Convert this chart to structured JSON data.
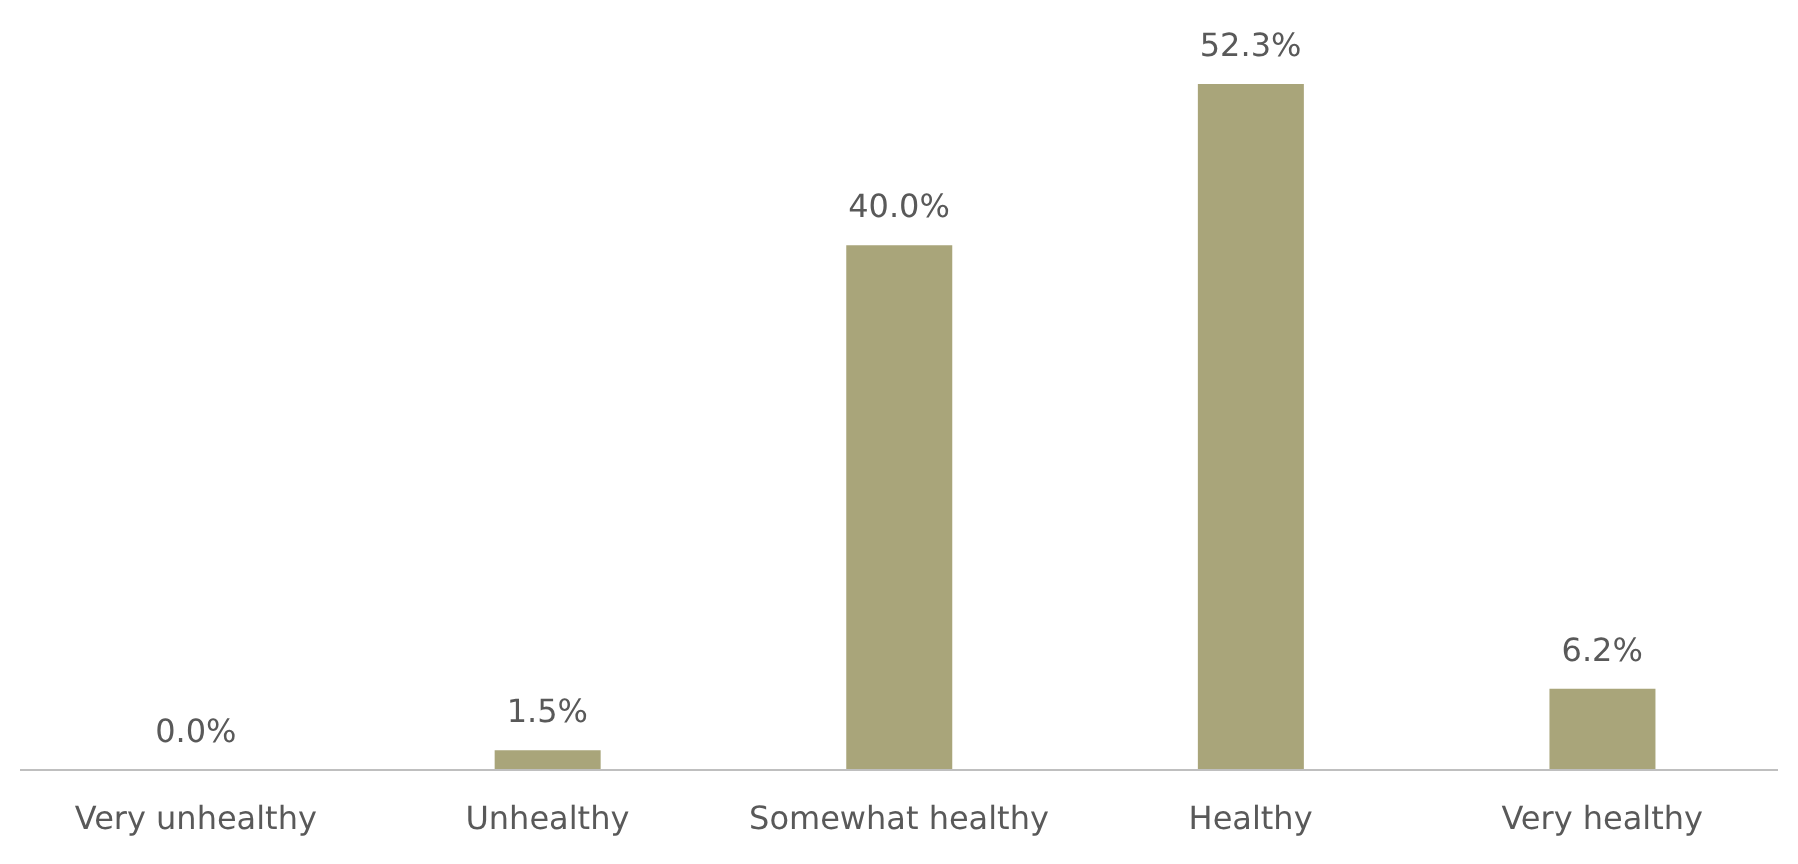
{
  "chart_data": {
    "type": "bar",
    "categories": [
      "Very unhealthy",
      "Unhealthy",
      "Somewhat healthy",
      "Healthy",
      "Very healthy"
    ],
    "values": [
      0,
      1.5,
      40,
      52.3,
      6.2
    ],
    "value_labels": [
      "0.0%",
      "1.5%",
      "40.0%",
      "52.3%",
      "6.2%"
    ],
    "color": "#a9a57a",
    "grid": false,
    "legend": false
  }
}
